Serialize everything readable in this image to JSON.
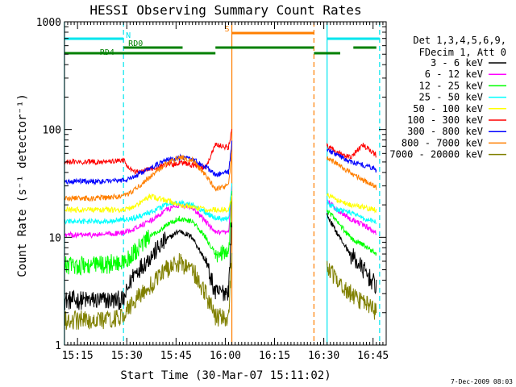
{
  "chart_data": {
    "type": "line",
    "title": "HESSI Observing Summary Count Rates",
    "xlabel": "Start Time (30-Mar-07 15:11:02)",
    "ylabel": "Count Rate (s⁻¹ detector⁻¹)",
    "y_scale": "log",
    "ylim": [
      1,
      1000
    ],
    "xlim": [
      "15:11:02",
      "16:49:00"
    ],
    "x_unit": "time HH:MM",
    "x_ticks": [
      "15:15",
      "15:30",
      "15:45",
      "16:00",
      "16:15",
      "16:30",
      "16:45"
    ],
    "y_ticks": [
      "1",
      "10",
      "100",
      "1000"
    ],
    "legend_header": [
      "Det 1,3,4,5,6,9,",
      "FDecim 1, Att 0"
    ],
    "legend_position": "right",
    "footer_date": "7-Dec-2009 08:03",
    "flags": [
      {
        "label": "N",
        "color": "#00e5ee",
        "segments": [
          [
            "15:11",
            "15:29"
          ],
          [
            "16:31",
            "16:47"
          ]
        ]
      },
      {
        "label": "S",
        "color": "#ff7f00",
        "segments": [
          [
            "16:02",
            "16:27"
          ]
        ]
      },
      {
        "label": "RD0",
        "color": "#008000",
        "segments": [
          [
            "15:29",
            "15:47"
          ],
          [
            "15:57",
            "16:27"
          ],
          [
            "16:39",
            "16:46"
          ]
        ]
      },
      {
        "label": "RD4",
        "color": "#008000",
        "segments": [
          [
            "15:11",
            "15:57"
          ],
          [
            "16:27",
            "16:35"
          ]
        ]
      }
    ],
    "vertical_markers": [
      {
        "time": "15:11",
        "color": "#00e5ee",
        "style": "solid"
      },
      {
        "time": "15:29",
        "color": "#00e5ee",
        "style": "dashed"
      },
      {
        "time": "16:02",
        "color": "#ff7f00",
        "style": "solid"
      },
      {
        "time": "16:27",
        "color": "#ff7f00",
        "style": "dashed"
      },
      {
        "time": "16:31",
        "color": "#00e5ee",
        "style": "solid"
      },
      {
        "time": "16:47",
        "color": "#00e5ee",
        "style": "dashed"
      }
    ],
    "series": [
      {
        "name": "3 - 6 keV",
        "color": "#000000",
        "x": [
          "15:11",
          "15:20",
          "15:29",
          "15:32",
          "15:37",
          "15:42",
          "15:46",
          "15:50",
          "15:54",
          "15:57",
          "16:01",
          "16:02",
          "16:31",
          "16:34",
          "16:38",
          "16:42",
          "16:46"
        ],
        "values": [
          2.6,
          2.6,
          2.6,
          4.5,
          6.5,
          9.5,
          11.5,
          10,
          6,
          3,
          3.2,
          15,
          16,
          11,
          7,
          5,
          3.5
        ]
      },
      {
        "name": "6 - 12 keV",
        "color": "#ff00ff",
        "x": [
          "15:11",
          "15:20",
          "15:29",
          "15:32",
          "15:37",
          "15:42",
          "15:46",
          "15:50",
          "15:54",
          "15:57",
          "16:01",
          "16:02",
          "16:31",
          "16:34",
          "16:38",
          "16:42",
          "16:46"
        ],
        "values": [
          10.5,
          10.5,
          11,
          12,
          14,
          18,
          20,
          19,
          14,
          11,
          11,
          30,
          22,
          18,
          15,
          13,
          11
        ]
      },
      {
        "name": "12 - 25 keV",
        "color": "#00ff00",
        "x": [
          "15:11",
          "15:20",
          "15:29",
          "15:32",
          "15:37",
          "15:42",
          "15:46",
          "15:50",
          "15:54",
          "15:57",
          "16:01",
          "16:02",
          "16:31",
          "16:34",
          "16:38",
          "16:42",
          "16:46"
        ],
        "values": [
          5.5,
          5.5,
          5.8,
          7,
          10,
          13,
          15,
          14,
          10,
          7,
          7,
          25,
          18,
          14,
          10,
          8.5,
          7
        ]
      },
      {
        "name": "25 - 50 keV",
        "color": "#00ffff",
        "x": [
          "15:11",
          "15:20",
          "15:29",
          "15:32",
          "15:37",
          "15:42",
          "15:46",
          "15:50",
          "15:54",
          "15:57",
          "16:01",
          "16:02",
          "16:31",
          "16:34",
          "16:38",
          "16:42",
          "16:46"
        ],
        "values": [
          14,
          14,
          14.5,
          15,
          17,
          20,
          21,
          20,
          17,
          15,
          15,
          30,
          21,
          18,
          17,
          15,
          14
        ]
      },
      {
        "name": "50 - 100 keV",
        "color": "#ffff00",
        "x": [
          "15:11",
          "15:20",
          "15:29",
          "15:32",
          "15:37",
          "15:42",
          "15:46",
          "15:50",
          "15:54",
          "15:57",
          "16:01",
          "16:02",
          "16:31",
          "16:34",
          "16:38",
          "16:42",
          "16:46"
        ],
        "values": [
          18,
          18,
          18,
          19,
          24,
          22,
          20,
          19,
          18,
          18,
          18,
          25,
          25,
          22,
          20,
          19,
          18
        ]
      },
      {
        "name": "100 - 300 keV",
        "color": "#ff0000",
        "x": [
          "15:11",
          "15:20",
          "15:29",
          "15:32",
          "15:37",
          "15:42",
          "15:46",
          "15:50",
          "15:54",
          "15:57",
          "16:01",
          "16:02",
          "16:31",
          "16:34",
          "16:38",
          "16:42",
          "16:46"
        ],
        "values": [
          50,
          50,
          52,
          40,
          43,
          47,
          49,
          47,
          44,
          72,
          68,
          100,
          70,
          62,
          55,
          72,
          58
        ]
      },
      {
        "name": "300 - 800 keV",
        "color": "#0000ff",
        "x": [
          "15:11",
          "15:20",
          "15:29",
          "15:32",
          "15:37",
          "15:42",
          "15:46",
          "15:50",
          "15:54",
          "15:57",
          "16:01",
          "16:02",
          "16:31",
          "16:34",
          "16:38",
          "16:42",
          "16:46"
        ],
        "values": [
          33,
          33,
          34,
          36,
          44,
          52,
          55,
          53,
          45,
          38,
          40,
          75,
          65,
          58,
          50,
          47,
          42
        ]
      },
      {
        "name": "800 - 7000 keV",
        "color": "#ff7f00",
        "x": [
          "15:11",
          "15:20",
          "15:29",
          "15:32",
          "15:37",
          "15:42",
          "15:46",
          "15:50",
          "15:54",
          "15:57",
          "16:01",
          "16:02",
          "16:31",
          "16:34",
          "16:38",
          "16:42",
          "16:46"
        ],
        "values": [
          23,
          23,
          24,
          27,
          36,
          48,
          55,
          52,
          38,
          28,
          30,
          65,
          55,
          48,
          40,
          34,
          29
        ]
      },
      {
        "name": "7000 - 20000 keV",
        "color": "#808000",
        "x": [
          "15:11",
          "15:20",
          "15:29",
          "15:32",
          "15:37",
          "15:42",
          "15:46",
          "15:50",
          "15:54",
          "15:57",
          "16:01",
          "16:02",
          "16:31",
          "16:34",
          "16:38",
          "16:42",
          "16:46"
        ],
        "values": [
          1.7,
          1.7,
          1.8,
          2.6,
          3.5,
          5,
          5.8,
          5,
          3,
          1.8,
          1.8,
          7,
          5.5,
          4,
          3,
          2.5,
          2
        ]
      }
    ]
  }
}
